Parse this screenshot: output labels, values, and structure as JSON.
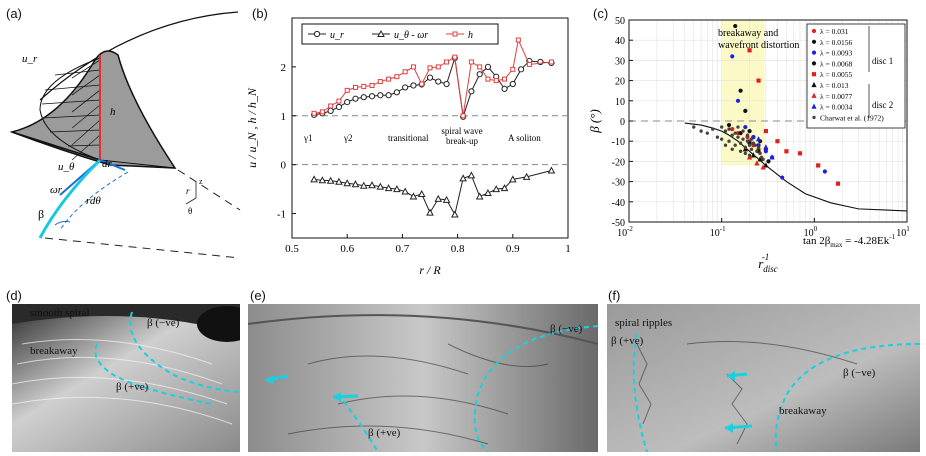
{
  "figure": {
    "panel_labels": {
      "a": "(a)",
      "b": "(b)",
      "c": "(c)",
      "d": "(d)",
      "e": "(e)",
      "f": "(f)"
    }
  },
  "panel_a": {
    "labels": {
      "ur": "u_r",
      "h": "h",
      "utheta": "u_θ",
      "dr": "dr",
      "omega_r": "ωr",
      "rdtheta": "rdθ",
      "beta": "β",
      "axis_r": "r",
      "axis_z": "z",
      "axis_theta": "θ"
    }
  },
  "panel_b": {
    "xlabel": "r / R",
    "ylabel": "u / u_N , h / h_N",
    "legend": [
      "u_r",
      "u_θ - ωr",
      "h"
    ],
    "regime_labels": [
      "γ1",
      "γ2",
      "transitional",
      "spiral wave break-up",
      "A soliton"
    ],
    "colors": {
      "ur": "#222222",
      "uth": "#222222",
      "h": "#e04040"
    }
  },
  "panel_c": {
    "xlabel": "r_disc^-1",
    "ylabel": "β (°)",
    "annotation": "breakaway and wavefront distortion",
    "formula": "tan 2β_max = -4.28Ek^-1",
    "legend": [
      {
        "label": "λ = 0.031",
        "color": "#e02020",
        "shape": "circle"
      },
      {
        "label": "λ = 0.0156",
        "color": "#111111",
        "shape": "circle"
      },
      {
        "label": "λ = 0.0093",
        "color": "#2020e0",
        "shape": "circle"
      },
      {
        "label": "λ = 0.0068",
        "color": "#111111",
        "shape": "circle"
      },
      {
        "label": "λ = 0.0055",
        "color": "#e02020",
        "shape": "square"
      },
      {
        "label": "λ = 0.013",
        "color": "#111111",
        "shape": "triangle"
      },
      {
        "label": "λ = 0.0077",
        "color": "#e02020",
        "shape": "triangle"
      },
      {
        "label": "λ = 0.0034",
        "color": "#2020e0",
        "shape": "triangle"
      },
      {
        "label": "Charwat et al. (1972)",
        "color": "#444444",
        "shape": "star"
      }
    ],
    "group_labels": [
      "disc 1",
      "disc 2"
    ]
  },
  "chart_data": [
    {
      "type": "line",
      "xlabel": "r / R",
      "ylabel": "u / u_N , h / h_N",
      "xlim": [
        0.5,
        1.0
      ],
      "ylim": [
        -1.5,
        3.0
      ],
      "xticks": [
        0.5,
        0.6,
        0.7,
        0.8,
        0.9,
        1.0
      ],
      "xtick_labels": [
        "0.5",
        "0.6",
        "0.7",
        "0.8",
        "0.9",
        "1"
      ],
      "yticks": [
        -1,
        0,
        1,
        2
      ],
      "ytick_labels": [
        "-1",
        "0",
        "1",
        "2"
      ],
      "series": [
        {
          "name": "u_r",
          "marker": "circle",
          "x": [
            0.54,
            0.555,
            0.57,
            0.585,
            0.6,
            0.615,
            0.63,
            0.645,
            0.66,
            0.675,
            0.69,
            0.705,
            0.72,
            0.735,
            0.75,
            0.765,
            0.78,
            0.795,
            0.81,
            0.825,
            0.84,
            0.855,
            0.87,
            0.885,
            0.9,
            0.915,
            0.93,
            0.95,
            0.97
          ],
          "y": [
            1.02,
            1.05,
            1.1,
            1.18,
            1.28,
            1.35,
            1.38,
            1.4,
            1.42,
            1.42,
            1.48,
            1.58,
            1.62,
            1.64,
            1.78,
            1.7,
            1.65,
            2.18,
            0.98,
            1.5,
            1.85,
            2.0,
            1.8,
            1.55,
            1.65,
            1.95,
            2.12,
            2.1,
            2.08
          ]
        },
        {
          "name": "u_θ - ωr",
          "marker": "triangle",
          "x": [
            0.54,
            0.555,
            0.57,
            0.585,
            0.6,
            0.615,
            0.63,
            0.645,
            0.66,
            0.675,
            0.69,
            0.705,
            0.72,
            0.735,
            0.75,
            0.765,
            0.78,
            0.795,
            0.81,
            0.825,
            0.84,
            0.855,
            0.87,
            0.885,
            0.9,
            0.925,
            0.97
          ],
          "y": [
            -0.3,
            -0.32,
            -0.33,
            -0.35,
            -0.38,
            -0.4,
            -0.43,
            -0.42,
            -0.45,
            -0.48,
            -0.5,
            -0.55,
            -0.65,
            -0.6,
            -0.98,
            -0.7,
            -0.72,
            -1.02,
            -0.28,
            -0.22,
            -0.65,
            -0.58,
            -0.5,
            -0.48,
            -0.3,
            -0.25,
            -0.12
          ]
        },
        {
          "name": "h",
          "marker": "square",
          "x": [
            0.54,
            0.555,
            0.57,
            0.585,
            0.6,
            0.615,
            0.63,
            0.645,
            0.66,
            0.675,
            0.69,
            0.705,
            0.72,
            0.735,
            0.75,
            0.765,
            0.78,
            0.795,
            0.81,
            0.825,
            0.84,
            0.855,
            0.87,
            0.885,
            0.9,
            0.91,
            0.93,
            0.97
          ],
          "y": [
            1.05,
            1.08,
            1.2,
            1.3,
            1.52,
            1.58,
            1.6,
            1.62,
            1.7,
            1.75,
            1.8,
            1.9,
            2.0,
            1.65,
            1.98,
            2.0,
            2.1,
            2.2,
            1.0,
            2.1,
            2.0,
            1.75,
            1.72,
            1.75,
            1.95,
            2.55,
            2.05,
            2.1
          ]
        }
      ],
      "reference_lines": [
        1,
        0
      ]
    },
    {
      "type": "scatter",
      "xlabel": "r_disc^-1",
      "ylabel": "β (°)",
      "xscale": "log",
      "xlim": [
        0.01,
        10
      ],
      "ylim": [
        -50,
        50
      ],
      "xtick_labels": [
        "10^-2",
        "10^-1",
        "10^0",
        "10^1"
      ],
      "yticks": [
        -50,
        -40,
        -30,
        -20,
        -10,
        0,
        10,
        20,
        30,
        40,
        50
      ],
      "ytick_labels": [
        "-50",
        "-40",
        "-30",
        "-20",
        "-10",
        "0",
        "10",
        "20",
        "30",
        "40",
        "50"
      ],
      "shaded_region_x": [
        0.1,
        0.29
      ],
      "curve": {
        "name": "tan 2β_max = -4.28Ek^-1",
        "x": [
          0.04,
          0.06,
          0.08,
          0.1,
          0.12,
          0.15,
          0.2,
          0.3,
          0.5,
          0.8,
          1.5,
          3,
          10
        ],
        "y": [
          -1,
          -2,
          -3.5,
          -5,
          -7,
          -10,
          -15,
          -22,
          -30,
          -36,
          -40.5,
          -43.5,
          -44.5
        ]
      },
      "series": [
        {
          "name": "λ = 0.031",
          "x": [
            0.13,
            0.15,
            0.19,
            0.2,
            0.22,
            0.25
          ],
          "y": [
            -4,
            -6,
            -8,
            -10,
            -12,
            -14
          ]
        },
        {
          "name": "λ = 0.0156",
          "x": [
            0.14,
            0.16,
            0.18,
            0.2,
            0.22,
            0.26,
            0.3
          ],
          "y": [
            47,
            15,
            5,
            -5,
            -8,
            -10,
            -14
          ]
        },
        {
          "name": "λ = 0.0093",
          "x": [
            0.13,
            0.15,
            0.18,
            0.22,
            0.25,
            0.3,
            0.35,
            0.45,
            1.3
          ],
          "y": [
            32,
            10,
            -3,
            -8,
            -12,
            -15,
            -18,
            -28,
            -25
          ]
        },
        {
          "name": "λ = 0.0068",
          "x": [
            0.12,
            0.16,
            0.2,
            0.25,
            0.32
          ],
          "y": [
            -2,
            -6,
            -11,
            -15,
            -20
          ]
        },
        {
          "name": "λ = 0.0055",
          "x": [
            0.2,
            0.25,
            0.3,
            0.4,
            0.5,
            0.7,
            1.1,
            1.8
          ],
          "y": [
            35,
            20,
            -5,
            -10,
            -15,
            -16,
            -22,
            -31
          ]
        },
        {
          "name": "λ = 0.013",
          "x": [
            0.18,
            0.22,
            0.26,
            0.3
          ],
          "y": [
            -14,
            -17,
            -19,
            -22
          ]
        },
        {
          "name": "λ = 0.0077",
          "x": [
            0.2,
            0.24,
            0.28
          ],
          "y": [
            -18,
            -21,
            -23
          ]
        },
        {
          "name": "λ = 0.0034",
          "x": [
            0.25,
            0.3,
            0.35
          ],
          "y": [
            -9,
            -13,
            -18
          ]
        },
        {
          "name": "Charwat et al. (1972)",
          "x": [
            0.05,
            0.06,
            0.07,
            0.08,
            0.09,
            0.1,
            0.11,
            0.12,
            0.13,
            0.14,
            0.15,
            0.16,
            0.17,
            0.18,
            0.19,
            0.2,
            0.21,
            0.22,
            0.24,
            0.25,
            0.27,
            0.1,
            0.12,
            0.14,
            0.15,
            0.17,
            0.19,
            0.21,
            0.23,
            0.26,
            0.28,
            0.11,
            0.13,
            0.16,
            0.18,
            0.2
          ],
          "y": [
            -3,
            -5,
            -6,
            -4,
            -8,
            -9,
            -5,
            -10,
            -7,
            -12,
            -8,
            -11,
            -9,
            -13,
            -10,
            -12,
            -14,
            -11,
            -15,
            -13,
            -18,
            -3,
            -4,
            -6,
            -3,
            -5,
            -7,
            -9,
            -12,
            -16,
            -19,
            -12,
            -14,
            -15,
            -16,
            -17
          ]
        }
      ],
      "reference_lines": [
        0
      ]
    }
  ],
  "panel_d": {
    "labels": [
      "smooth spiral",
      "breakaway",
      "β (−ve)",
      "β (+ve)"
    ]
  },
  "panel_e": {
    "labels": [
      "β (−ve)",
      "β (+ve)"
    ]
  },
  "panel_f": {
    "labels": [
      "spiral ripples",
      "β (+ve)",
      "β (−ve)",
      "breakaway"
    ]
  }
}
